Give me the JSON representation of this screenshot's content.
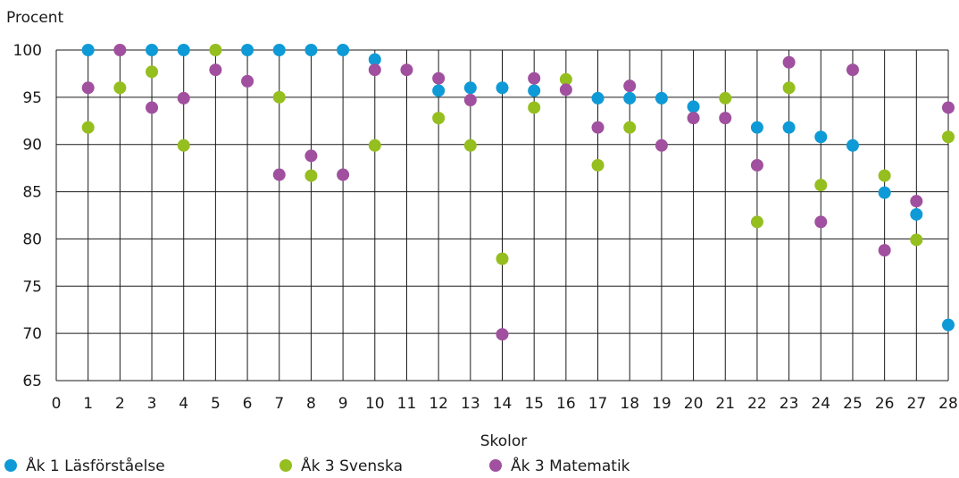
{
  "chart_data": {
    "type": "scatter",
    "ylabel": "Procent",
    "xlabel": "Skolor",
    "xlim": [
      0,
      28
    ],
    "ylim": [
      65,
      100
    ],
    "xticks": [
      0,
      1,
      2,
      3,
      4,
      5,
      6,
      7,
      8,
      9,
      10,
      11,
      12,
      13,
      14,
      15,
      16,
      17,
      18,
      19,
      20,
      21,
      22,
      23,
      24,
      25,
      26,
      27,
      28
    ],
    "yticks": [
      65,
      70,
      75,
      80,
      85,
      90,
      95,
      100
    ],
    "grid": true,
    "legend_position": "bottom-left",
    "series": [
      {
        "name": "Åk 1 Läsförståelse",
        "color": "#0e9ad6",
        "points": [
          [
            1,
            100
          ],
          [
            3,
            100
          ],
          [
            4,
            100
          ],
          [
            6,
            100
          ],
          [
            7,
            100
          ],
          [
            8,
            100
          ],
          [
            9,
            100
          ],
          [
            10,
            99
          ],
          [
            12,
            95.7
          ],
          [
            13,
            96
          ],
          [
            14,
            96
          ],
          [
            15,
            95.7
          ],
          [
            17,
            94.9
          ],
          [
            18,
            94.9
          ],
          [
            19,
            94.9
          ],
          [
            20,
            94
          ],
          [
            22,
            91.8
          ],
          [
            23,
            91.8
          ],
          [
            24,
            90.8
          ],
          [
            25,
            89.9
          ],
          [
            26,
            84.9
          ],
          [
            27,
            82.6
          ],
          [
            28,
            70.9
          ]
        ]
      },
      {
        "name": "Åk 3 Svenska",
        "color": "#95be1f",
        "points": [
          [
            1,
            91.8
          ],
          [
            2,
            96
          ],
          [
            3,
            97.7
          ],
          [
            4,
            89.9
          ],
          [
            5,
            100
          ],
          [
            7,
            95
          ],
          [
            8,
            86.7
          ],
          [
            10,
            89.9
          ],
          [
            12,
            92.8
          ],
          [
            13,
            89.9
          ],
          [
            14,
            77.9
          ],
          [
            15,
            93.9
          ],
          [
            16,
            96.9
          ],
          [
            17,
            87.8
          ],
          [
            18,
            91.8
          ],
          [
            21,
            94.9
          ],
          [
            22,
            81.8
          ],
          [
            23,
            96
          ],
          [
            24,
            85.7
          ],
          [
            26,
            86.7
          ],
          [
            27,
            79.9
          ],
          [
            28,
            90.8
          ]
        ]
      },
      {
        "name": "Åk 3 Matematik",
        "color": "#a0509e",
        "points": [
          [
            1,
            96
          ],
          [
            2,
            100
          ],
          [
            3,
            93.9
          ],
          [
            4,
            94.9
          ],
          [
            5,
            97.9
          ],
          [
            6,
            96.7
          ],
          [
            7,
            86.8
          ],
          [
            8,
            88.8
          ],
          [
            9,
            86.8
          ],
          [
            10,
            97.9
          ],
          [
            11,
            97.9
          ],
          [
            12,
            97
          ],
          [
            13,
            94.7
          ],
          [
            14,
            69.9
          ],
          [
            15,
            97
          ],
          [
            16,
            95.8
          ],
          [
            17,
            91.8
          ],
          [
            18,
            96.2
          ],
          [
            19,
            89.9
          ],
          [
            20,
            92.8
          ],
          [
            21,
            92.8
          ],
          [
            22,
            87.8
          ],
          [
            23,
            98.7
          ],
          [
            24,
            81.8
          ],
          [
            25,
            97.9
          ],
          [
            26,
            78.8
          ],
          [
            27,
            84
          ],
          [
            28,
            93.9
          ]
        ]
      }
    ]
  }
}
